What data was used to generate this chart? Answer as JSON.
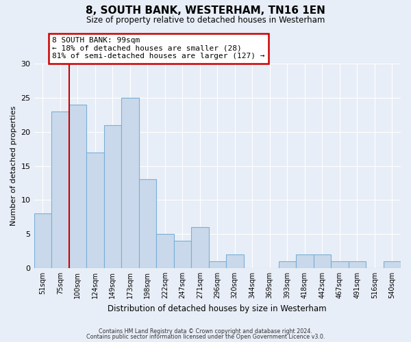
{
  "title": "8, SOUTH BANK, WESTERHAM, TN16 1EN",
  "subtitle": "Size of property relative to detached houses in Westerham",
  "xlabel": "Distribution of detached houses by size in Westerham",
  "ylabel": "Number of detached properties",
  "bar_color": "#c9d9eb",
  "bar_edge_color": "#7aaed6",
  "background_color": "#e8eef7",
  "grid_color": "#ffffff",
  "bin_labels": [
    "51sqm",
    "75sqm",
    "100sqm",
    "124sqm",
    "149sqm",
    "173sqm",
    "198sqm",
    "222sqm",
    "247sqm",
    "271sqm",
    "296sqm",
    "320sqm",
    "344sqm",
    "369sqm",
    "393sqm",
    "418sqm",
    "442sqm",
    "467sqm",
    "491sqm",
    "516sqm",
    "540sqm"
  ],
  "bar_heights": [
    8,
    23,
    24,
    17,
    21,
    25,
    13,
    5,
    4,
    6,
    1,
    2,
    0,
    0,
    1,
    2,
    2,
    1,
    1,
    0,
    1
  ],
  "ylim": [
    0,
    30
  ],
  "yticks": [
    0,
    5,
    10,
    15,
    20,
    25,
    30
  ],
  "property_line_index": 2,
  "property_line_color": "#cc0000",
  "annotation_text": "8 SOUTH BANK: 99sqm\n← 18% of detached houses are smaller (28)\n81% of semi-detached houses are larger (127) →",
  "annotation_box_color": "#cc0000",
  "footer_line1": "Contains HM Land Registry data © Crown copyright and database right 2024.",
  "footer_line2": "Contains public sector information licensed under the Open Government Licence v3.0."
}
